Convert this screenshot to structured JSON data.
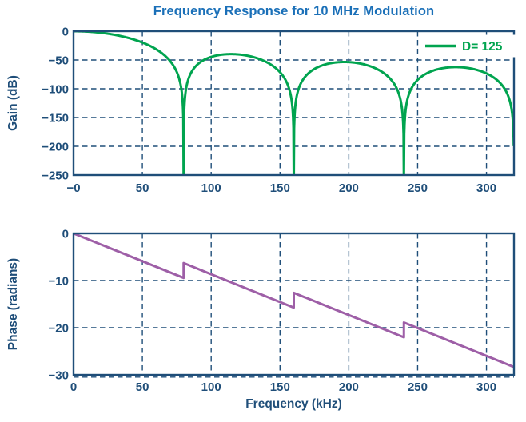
{
  "title": "Frequency Response for 10 MHz Modulation",
  "colors": {
    "title_blue": "#1b70b8",
    "axis_navy": "#1f4e79",
    "grid_navy": "#1f4e79",
    "gain_green": "#00a44f",
    "phase_purple": "#9e5fa7",
    "legend_background": "#ffffff",
    "background": "#ffffff"
  },
  "chart_data": [
    {
      "id": "gain",
      "type": "line",
      "title": "Frequency Response for 10 MHz Modulation",
      "xlabel": "",
      "ylabel": "Gain (dB)",
      "xlim": [
        0,
        320
      ],
      "ylim": [
        -250,
        0
      ],
      "grid": {
        "on": true,
        "style": "dashed"
      },
      "xticks": {
        "values": [
          0,
          50,
          100,
          150,
          200,
          250,
          300
        ],
        "labels": [
          "−0",
          "50",
          "100",
          "150",
          "200",
          "250",
          "300"
        ]
      },
      "yticks": {
        "values": [
          0,
          -50,
          -100,
          -150,
          -200,
          -250
        ],
        "labels": [
          "0",
          "−50",
          "−100",
          "−150",
          "−200",
          "−250"
        ]
      },
      "legend": {
        "label": "D= 125",
        "position": "top-right"
      },
      "series": [
        {
          "name": "D= 125",
          "color": "#00a44f",
          "formula": "gain_dB(f) = 60*log10(|sin(pi*f/80)/(pi*f/80)|)  (sinc^3 decimation filter response, D = 125, f_mod = 10 MHz)",
          "params": {
            "sinc_power": 3,
            "null_spacing_khz": 80,
            "f_start_khz": 0.25,
            "f_end_khz": 319.85,
            "step_khz": 0.25,
            "clip_db": -260
          },
          "passband_gain_db": 0,
          "nulls_khz": [
            80,
            160,
            240,
            320
          ],
          "sidelobe_peaks": [
            {
              "f_khz": 118.6,
              "gain_db": -39.9
            },
            {
              "f_khz": 198.9,
              "gain_db": -53.4
            },
            {
              "f_khz": 279.1,
              "gain_db": -62.2
            }
          ]
        }
      ]
    },
    {
      "id": "phase",
      "type": "line",
      "xlabel": "Frequency (kHz)",
      "ylabel": "Phase (radians)",
      "xlim": [
        0,
        320
      ],
      "ylim": [
        -30,
        0
      ],
      "grid": {
        "on": true,
        "style": "dashed"
      },
      "xticks": {
        "values": [
          0,
          50,
          100,
          150,
          200,
          250,
          300
        ],
        "labels": [
          "0",
          "50",
          "100",
          "150",
          "200",
          "250",
          "300"
        ]
      },
      "yticks": {
        "values": [
          0,
          -10,
          -20,
          -30
        ],
        "labels": [
          "0",
          "−10",
          "−20",
          "−30"
        ]
      },
      "series": [
        {
          "name": "phase",
          "color": "#9e5fa7",
          "slope_rad_per_khz": -0.118,
          "phase_jump_rad": 3.14159,
          "jump_freqs_khz": [
            80,
            160,
            240
          ],
          "points": [
            [
              0,
              0
            ],
            [
              80,
              -9.44
            ],
            [
              80,
              -6.3
            ],
            [
              160,
              -15.74
            ],
            [
              160,
              -12.6
            ],
            [
              240,
              -22.04
            ],
            [
              240,
              -18.9
            ],
            [
              320,
              -28.34
            ]
          ]
        }
      ]
    }
  ]
}
